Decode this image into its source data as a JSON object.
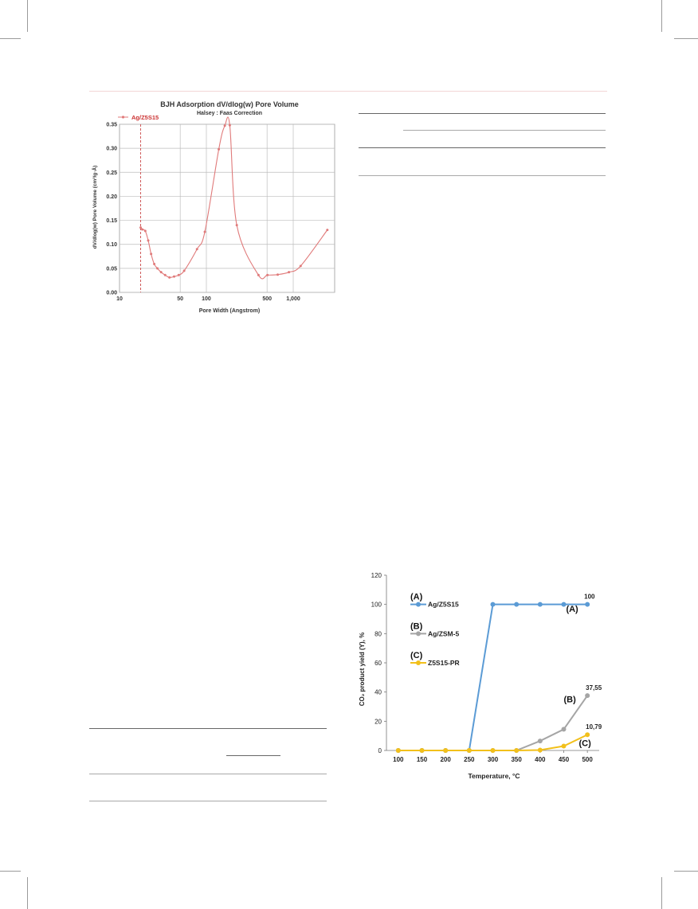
{
  "chart_data": [
    {
      "type": "line",
      "title": "BJH Adsorption dV/dlog(w) Pore Volume",
      "subtitle": "Halsey : Faas Correction",
      "xlabel": "Pore Width (Angstrom)",
      "ylabel": "dV/dlog(w) Pore Volume (cm³/g·Å)",
      "xscale": "log",
      "xlim": [
        10,
        3000
      ],
      "ylim": [
        0,
        0.35
      ],
      "x_tick_labels": [
        "10",
        "50",
        "100",
        "500",
        "1,000"
      ],
      "x_tick_values": [
        10,
        50,
        100,
        500,
        1000
      ],
      "y_ticks": [
        "0.00",
        "0.05",
        "0.10",
        "0.15",
        "0.20",
        "0.25",
        "0.30",
        "0.35"
      ],
      "grid": true,
      "legend_position": "top-left",
      "colors": {
        "series": "#e07a7a",
        "legend_text": "#cc3333",
        "grid": "#bdbdbd"
      },
      "series": [
        {
          "name": "Ag/Z5S15",
          "x": [
            17.5,
            18.3,
            19.8,
            21.4,
            23.1,
            25.1,
            27.3,
            30.1,
            33.5,
            37.6,
            42.5,
            48.0,
            55.5,
            78.0,
            96.0,
            139.0,
            163.0,
            186.0,
            224.0,
            398.0,
            505.0,
            663.0,
            892.0,
            1217.0,
            2471.0
          ],
          "y": [
            0.135,
            0.131,
            0.128,
            0.108,
            0.08,
            0.059,
            0.05,
            0.042,
            0.036,
            0.031,
            0.033,
            0.036,
            0.045,
            0.09,
            0.126,
            0.298,
            0.347,
            0.348,
            0.14,
            0.036,
            0.036,
            0.037,
            0.042,
            0.055,
            0.13
          ]
        }
      ],
      "reference_line_x": 17.5
    },
    {
      "type": "line",
      "title": "",
      "xlabel": "Temperature, °C",
      "ylabel": "CO₂ product yield (Y), %",
      "xlim": [
        75,
        525
      ],
      "ylim": [
        0,
        120
      ],
      "x_ticks": [
        "100",
        "150",
        "200",
        "250",
        "300",
        "350",
        "400",
        "450",
        "500"
      ],
      "y_ticks": [
        "0",
        "20",
        "40",
        "60",
        "80",
        "100",
        "120"
      ],
      "grid": false,
      "legend_position": "top-left",
      "categories": [
        100,
        150,
        200,
        250,
        300,
        350,
        400,
        450,
        500
      ],
      "series": [
        {
          "name": "Ag/Z5S15",
          "tag": "(A)",
          "color": "#5b9bd5",
          "values": [
            0,
            0,
            0,
            0,
            100,
            100,
            100,
            100,
            100
          ]
        },
        {
          "name": "Ag/ZSM-5",
          "tag": "(B)",
          "color": "#a5a5a5",
          "values": [
            0,
            0,
            0,
            0,
            0,
            0,
            6.5,
            14.5,
            37.55
          ]
        },
        {
          "name": "Z5S15-PR",
          "tag": "(C)",
          "color": "#f2c01b",
          "values": [
            0,
            0,
            0,
            0,
            0,
            0,
            0.3,
            3.0,
            10.79
          ]
        }
      ],
      "data_labels": [
        "100",
        "37,55",
        "10,79"
      ],
      "curve_tags": [
        "(A)",
        "(B)",
        "(C)"
      ]
    }
  ]
}
